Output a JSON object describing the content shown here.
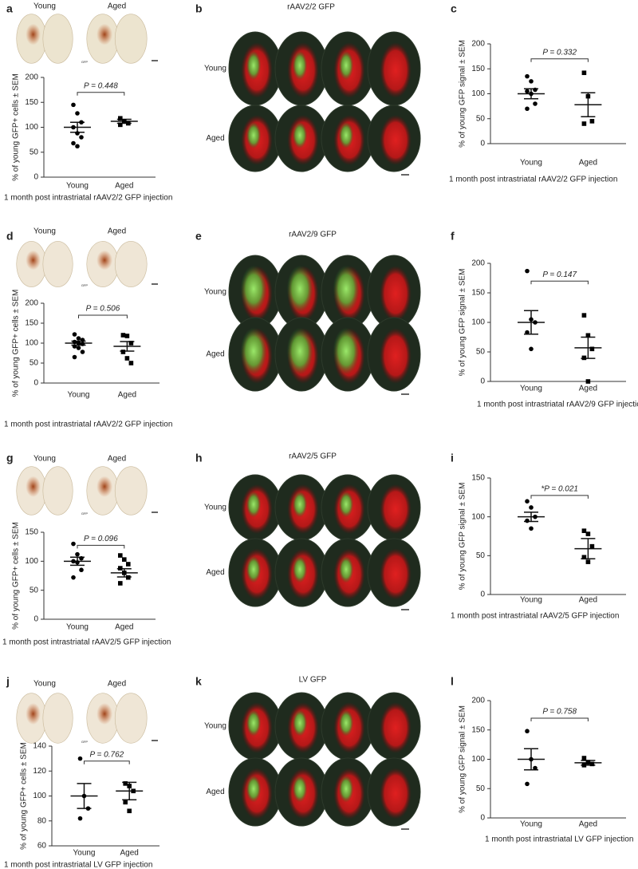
{
  "image_panels": [
    {
      "labels": [
        "Young",
        "Aged"
      ],
      "stain": "GFP"
    },
    {
      "labels": [
        "Young",
        "Aged"
      ],
      "stain": "GFP"
    },
    {
      "labels": [
        "Young",
        "Aged"
      ],
      "stain": "GFP"
    },
    {
      "labels": [
        "Young",
        "Aged"
      ],
      "stain": "GFP"
    }
  ],
  "fluorescence_panels": [
    {
      "letter": "b",
      "title": "rAAV2/2 GFP",
      "rows": [
        "Young",
        "Aged"
      ]
    },
    {
      "letter": "e",
      "title": "rAAV2/9 GFP",
      "rows": [
        "Young",
        "Aged"
      ]
    },
    {
      "letter": "h",
      "title": "rAAV2/5 GFP",
      "rows": [
        "Young",
        "Aged"
      ]
    },
    {
      "letter": "k",
      "title": "LV GFP",
      "rows": [
        "Young",
        "Aged"
      ]
    }
  ],
  "chart_data": [
    {
      "type": "scatter",
      "letter": "a",
      "ylabel": "% of young GFP+ cells ± SEM",
      "caption": "1 month post intrastriatal rAAV2/2 GFP injection",
      "categories": [
        "Young",
        "Aged"
      ],
      "p_label": "P = 0.448",
      "ylim": [
        0,
        200
      ],
      "yticks": [
        0,
        50,
        100,
        150,
        200
      ],
      "groups": [
        {
          "values": [
            145,
            128,
            110,
            100,
            88,
            80,
            68,
            62
          ],
          "mean": 100,
          "sem": 10
        },
        {
          "values": [
            118,
            112,
            108,
            105
          ],
          "mean": 112,
          "sem": 4
        }
      ]
    },
    {
      "type": "scatter",
      "letter": "c",
      "ylabel": "% of young GFP signal ± SEM",
      "caption": "1 month post intrastriatal rAAV2/2 GFP injection",
      "categories": [
        "Young",
        "Aged"
      ],
      "p_label": "P = 0.332",
      "ylim": [
        0,
        200
      ],
      "yticks": [
        0,
        50,
        100,
        150,
        200
      ],
      "groups": [
        {
          "values": [
            135,
            125,
            108,
            105,
            100,
            80,
            70
          ],
          "mean": 100,
          "sem": 10
        },
        {
          "values": [
            142,
            95,
            45,
            40
          ],
          "mean": 78,
          "sem": 24
        }
      ]
    },
    {
      "type": "scatter",
      "letter": "d",
      "ylabel": "% of young GFP+ cells ± SEM",
      "caption": "1 month post intrastriatal rAAV2/2 GFP injection",
      "categories": [
        "Young",
        "Aged"
      ],
      "p_label": "P = 0.506",
      "ylim": [
        0,
        200
      ],
      "yticks": [
        0,
        50,
        100,
        150,
        200
      ],
      "groups": [
        {
          "values": [
            122,
            112,
            108,
            103,
            100,
            98,
            92,
            88,
            78,
            65
          ],
          "mean": 100,
          "sem": 5
        },
        {
          "values": [
            120,
            118,
            100,
            78,
            62,
            50
          ],
          "mean": 92,
          "sem": 12
        }
      ]
    },
    {
      "type": "scatter",
      "letter": "f",
      "ylabel": "% of young GFP signal ± SEM",
      "caption": "1 month post intrastriatal rAAV2/9 GFP injection",
      "categories": [
        "Young",
        "Aged"
      ],
      "p_label": "P = 0.147",
      "ylim": [
        0,
        200
      ],
      "yticks": [
        0,
        50,
        100,
        150,
        200
      ],
      "groups": [
        {
          "values": [
            187,
            105,
            100,
            83,
            55
          ],
          "mean": 100,
          "sem": 20
        },
        {
          "values": [
            112,
            78,
            55,
            40,
            0
          ],
          "mean": 57,
          "sem": 18
        }
      ]
    },
    {
      "type": "scatter",
      "letter": "g",
      "ylabel": "% of young GFP+ cells ± SEM",
      "caption": "1 month post intrastriatal rAAV2/5 GFP injection",
      "categories": [
        "Young",
        "Aged"
      ],
      "p_label": "P = 0.096",
      "ylim": [
        0,
        150
      ],
      "yticks": [
        0,
        50,
        100,
        150
      ],
      "groups": [
        {
          "values": [
            130,
            112,
            105,
            100,
            98,
            85,
            72
          ],
          "mean": 100,
          "sem": 7
        },
        {
          "values": [
            110,
            103,
            95,
            88,
            80,
            72,
            62
          ],
          "mean": 80,
          "sem": 7
        }
      ]
    },
    {
      "type": "scatter",
      "letter": "i",
      "ylabel": "% of young GFP signal ± SEM",
      "caption": "1 month post intrastriatal rAAV2/5 GFP injection",
      "categories": [
        "Young",
        "Aged"
      ],
      "p_label": "*P = 0.021",
      "ylim": [
        0,
        150
      ],
      "yticks": [
        0,
        50,
        100,
        150
      ],
      "groups": [
        {
          "values": [
            120,
            112,
            100,
            95,
            85
          ],
          "mean": 100,
          "sem": 6
        },
        {
          "values": [
            82,
            78,
            62,
            48,
            42
          ],
          "mean": 59,
          "sem": 13
        }
      ]
    },
    {
      "type": "scatter",
      "letter": "j",
      "ylabel": "% of young GFP+ cells ± SEM",
      "caption": "1 month post intrastriatal LV GFP injection",
      "categories": [
        "Young",
        "Aged"
      ],
      "p_label": "P = 0.762",
      "ylim": [
        60,
        140
      ],
      "yticks": [
        60,
        80,
        100,
        120,
        140
      ],
      "groups": [
        {
          "values": [
            130,
            100,
            90,
            82
          ],
          "mean": 100,
          "sem": 10
        },
        {
          "values": [
            110,
            108,
            104,
            95,
            88
          ],
          "mean": 104,
          "sem": 7
        }
      ]
    },
    {
      "type": "scatter",
      "letter": "l",
      "ylabel": "% of young GFP signal ± SEM",
      "caption": "1 month post intrastriatal LV GFP injection",
      "categories": [
        "Young",
        "Aged"
      ],
      "p_label": "P = 0.758",
      "ylim": [
        0,
        200
      ],
      "yticks": [
        0,
        50,
        100,
        150,
        200
      ],
      "groups": [
        {
          "values": [
            148,
            100,
            85,
            58
          ],
          "mean": 100,
          "sem": 18
        },
        {
          "values": [
            102,
            95,
            92,
            90
          ],
          "mean": 94,
          "sem": 4
        }
      ]
    }
  ]
}
